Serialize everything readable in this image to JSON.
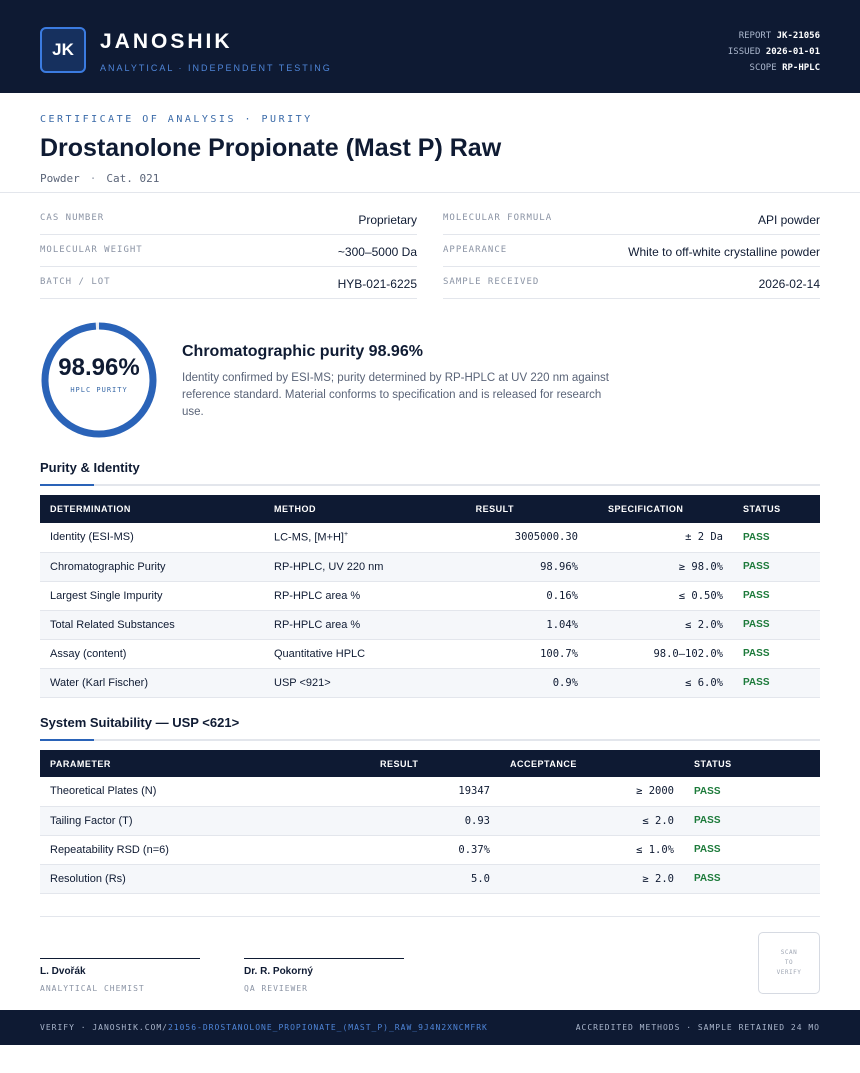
{
  "header": {
    "logo_text": "JK",
    "brand": "JANOSHIK",
    "tagline": "ANALYTICAL · INDEPENDENT TESTING",
    "report_label": "REPORT",
    "report_value": "JK-21056",
    "issued_label": "ISSUED",
    "issued_value": "2026-01-01",
    "scope_label": "SCOPE",
    "scope_value": "RP-HPLC"
  },
  "doc": {
    "eyebrow": "CERTIFICATE OF ANALYSIS · PURITY",
    "title": "Drostanolone Propionate (Mast P) Raw",
    "form": "Powder",
    "sep": "·",
    "catalog": "Cat. 021"
  },
  "properties": [
    {
      "label": "CAS NUMBER",
      "value": "Proprietary"
    },
    {
      "label": "MOLECULAR FORMULA",
      "value": "API powder"
    },
    {
      "label": "MOLECULAR WEIGHT",
      "value": "~300–5000 Da"
    },
    {
      "label": "APPEARANCE",
      "value": "White to off-white crystalline powder"
    },
    {
      "label": "BATCH / LOT",
      "value": "HYB-021-6225"
    },
    {
      "label": "SAMPLE RECEIVED",
      "value": "2026-02-14"
    }
  ],
  "summary": {
    "purity_percent": 98.96,
    "gauge_value": "98.96%",
    "gauge_label": "HPLC PURITY",
    "title": "Chromatographic purity 98.96%",
    "body": "Identity confirmed by ESI-MS; purity determined by RP-HPLC at UV 220 nm against reference standard. Material conforms to specification and is released for research use."
  },
  "purity_section": {
    "title": "Purity & Identity",
    "headers": [
      "DETERMINATION",
      "METHOD",
      "RESULT",
      "SPECIFICATION",
      "STATUS"
    ],
    "rows": [
      {
        "determination": "Identity (ESI-MS)",
        "method": "LC-MS, [M+H]",
        "method_sup": "+",
        "result": "3005000.30",
        "spec": "± 2 Da",
        "status": "PASS"
      },
      {
        "determination": "Chromatographic Purity",
        "method": "RP-HPLC, UV 220 nm",
        "result": "98.96%",
        "spec": "≥ 98.0%",
        "status": "PASS"
      },
      {
        "determination": "Largest Single Impurity",
        "method": "RP-HPLC area %",
        "result": "0.16%",
        "spec": "≤ 0.50%",
        "status": "PASS"
      },
      {
        "determination": "Total Related Substances",
        "method": "RP-HPLC area %",
        "result": "1.04%",
        "spec": "≤ 2.0%",
        "status": "PASS"
      },
      {
        "determination": "Assay (content)",
        "method": "Quantitative HPLC",
        "result": "100.7%",
        "spec": "98.0–102.0%",
        "status": "PASS"
      },
      {
        "determination": "Water (Karl Fischer)",
        "method": "USP <921>",
        "result": "0.9%",
        "spec": "≤ 6.0%",
        "status": "PASS"
      }
    ]
  },
  "suitability_section": {
    "title": "System Suitability — USP <621>",
    "headers": [
      "PARAMETER",
      "RESULT",
      "ACCEPTANCE",
      "STATUS"
    ],
    "rows": [
      {
        "parameter": "Theoretical Plates (N)",
        "result": "19347",
        "acceptance": "≥ 2000",
        "status": "PASS"
      },
      {
        "parameter": "Tailing Factor (T)",
        "result": "0.93",
        "acceptance": "≤ 2.0",
        "status": "PASS"
      },
      {
        "parameter": "Repeatability RSD (n=6)",
        "result": "0.37%",
        "acceptance": "≤ 1.0%",
        "status": "PASS"
      },
      {
        "parameter": "Resolution (Rs)",
        "result": "5.0",
        "acceptance": "≥ 2.0",
        "status": "PASS"
      }
    ]
  },
  "signatures": [
    {
      "name": "L. Dvořák",
      "role": "ANALYTICAL CHEMIST"
    },
    {
      "name": "Dr. R. Pokorný",
      "role": "QA REVIEWER"
    }
  ],
  "qr": {
    "line1": "SCAN",
    "line2": "TO",
    "line3": "VERIFY"
  },
  "footer": {
    "verify_prefix": "VERIFY · JANOSHIK.COM/",
    "verify_path": "21056-DROSTANOLONE_PROPIONATE_(MAST_P)_RAW_9J4N2XNCMFRK",
    "right": "ACCREDITED METHODS · SAMPLE RETAINED 24 MO"
  },
  "colors": {
    "navy": "#0e1a33",
    "accent": "#2a63b8",
    "pass": "#1c7a3a"
  }
}
